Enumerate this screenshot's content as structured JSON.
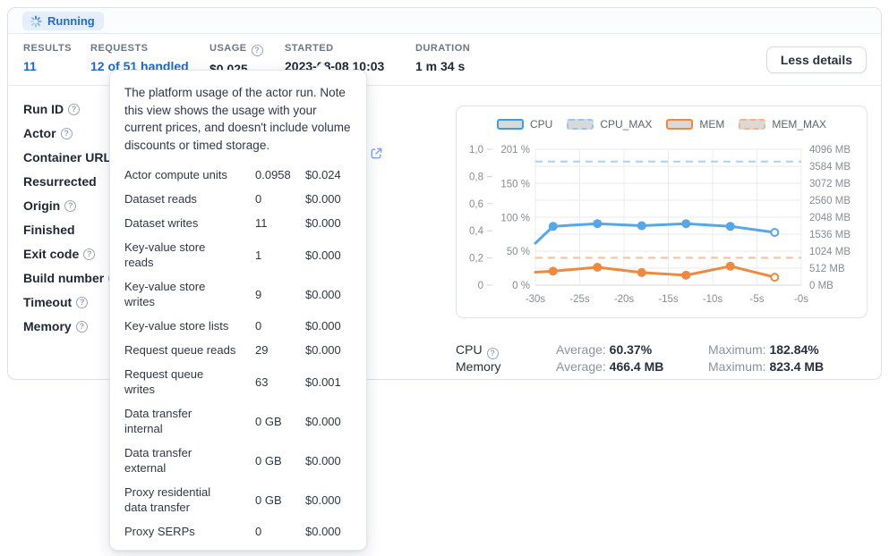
{
  "status": {
    "label": "Running"
  },
  "stats": {
    "results": {
      "label": "RESULTS",
      "value": "11"
    },
    "requests": {
      "label": "REQUESTS",
      "value": "12 of 51 handled"
    },
    "usage": {
      "label": "USAGE",
      "value": "$0.025"
    },
    "started": {
      "label": "STARTED",
      "value": "2023-08-08 10:03"
    },
    "duration": {
      "label": "DURATION",
      "value": "1 m 34 s"
    }
  },
  "actions": {
    "less_details": "Less details"
  },
  "details": {
    "fields": [
      {
        "label": "Run ID",
        "help": true,
        "external_link": false
      },
      {
        "label": "Actor",
        "help": true,
        "external_link": false
      },
      {
        "label": "Container URL",
        "help": true,
        "external_link": true
      },
      {
        "label": "Resurrected",
        "help": false,
        "external_link": false
      },
      {
        "label": "Origin",
        "help": true,
        "external_link": false
      },
      {
        "label": "Finished",
        "help": false,
        "external_link": false
      },
      {
        "label": "Exit code",
        "help": true,
        "external_link": false
      },
      {
        "label": "Build number",
        "help": true,
        "external_link": false
      },
      {
        "label": "Timeout",
        "help": true,
        "external_link": false
      },
      {
        "label": "Memory",
        "help": true,
        "external_link": false
      }
    ]
  },
  "tooltip": {
    "text": "The platform usage of the actor run. Note this view shows the usage with your current prices, and doesn't include volume discounts or timed storage.",
    "rows": [
      {
        "label": "Actor compute units",
        "value": "0.0958",
        "price": "$0.024"
      },
      {
        "label": "Dataset reads",
        "value": "0",
        "price": "$0.000"
      },
      {
        "label": "Dataset writes",
        "value": "11",
        "price": "$0.000"
      },
      {
        "label": "Key-value store\nreads",
        "value": "1",
        "price": "$0.000"
      },
      {
        "label": "Key-value store\nwrites",
        "value": "9",
        "price": "$0.000"
      },
      {
        "label": "Key-value store lists",
        "value": "0",
        "price": "$0.000"
      },
      {
        "label": "Request queue reads",
        "value": "29",
        "price": "$0.000"
      },
      {
        "label": "Request queue\nwrites",
        "value": "63",
        "price": "$0.001"
      },
      {
        "label": "Data transfer\ninternal",
        "value": "0 GB",
        "price": "$0.000"
      },
      {
        "label": "Data transfer\nexternal",
        "value": "0 GB",
        "price": "$0.000"
      },
      {
        "label": "Proxy residential\ndata transfer",
        "value": "0 GB",
        "price": "$0.000"
      },
      {
        "label": "Proxy SERPs",
        "value": "0",
        "price": "$0.000"
      }
    ]
  },
  "chart_data": {
    "type": "line",
    "x": [
      -30,
      -28,
      -23,
      -18,
      -13,
      -8,
      -3
    ],
    "x_unit": "seconds",
    "series": [
      {
        "name": "CPU",
        "axis": "percent",
        "style": "solid",
        "color": "#55a7e9",
        "values": [
          62,
          87,
          91,
          88,
          91,
          87,
          78
        ]
      },
      {
        "name": "CPU_MAX",
        "axis": "percent",
        "style": "dashed",
        "color": "#a6d2f2",
        "constant": 182.84
      },
      {
        "name": "MEM",
        "axis": "mb",
        "style": "solid",
        "color": "#ee8a40",
        "values": [
          390,
          420,
          540,
          380,
          300,
          570,
          240
        ]
      },
      {
        "name": "MEM_MAX",
        "axis": "mb",
        "style": "dashed",
        "color": "#f7c09a",
        "constant": 823.4
      }
    ],
    "axes": {
      "left_outer": {
        "range": [
          0,
          1
        ],
        "ticks": [
          "1,0",
          "0,8",
          "0,6",
          "0,4",
          "0,2",
          "0"
        ]
      },
      "left_percent": {
        "range": [
          0,
          201
        ],
        "ticks": [
          "201 %",
          "150 %",
          "100 %",
          "50 %",
          "0 %"
        ],
        "tick_values": [
          201,
          150,
          100,
          50,
          0
        ]
      },
      "right_mb": {
        "range": [
          0,
          4096
        ],
        "ticks": [
          "4096 MB",
          "3584 MB",
          "3072 MB",
          "2560 MB",
          "2048 MB",
          "1536 MB",
          "1024 MB",
          "512 MB",
          "0 MB"
        ]
      },
      "x_ticks": [
        "-30s",
        "-25s",
        "-20s",
        "-15s",
        "-10s",
        "-5s",
        "-0s"
      ]
    },
    "legend": [
      {
        "label": "CPU",
        "color": "#3f9de8",
        "style": "solid"
      },
      {
        "label": "CPU_MAX",
        "color": "#90c8f1",
        "style": "dashed"
      },
      {
        "label": "MEM",
        "color": "#ee8a40",
        "style": "solid"
      },
      {
        "label": "MEM_MAX",
        "color": "#f5b285",
        "style": "dashed"
      }
    ],
    "grid": true,
    "title": ""
  },
  "resource_stats": {
    "rows": [
      {
        "name": "CPU",
        "help": true,
        "average_label": "Average:",
        "average_value": "60.37%",
        "maximum_label": "Maximum:",
        "maximum_value": "182.84%"
      },
      {
        "name": "Memory",
        "help": false,
        "average_label": "Average:",
        "average_value": "466.4 MB",
        "maximum_label": "Maximum:",
        "maximum_value": "823.4 MB"
      }
    ]
  },
  "colors": {
    "accent_blue": "#1b66d9",
    "badge_bg": "#e4eefc",
    "cpu_line": "#55a7e9",
    "mem_line": "#ee8a40",
    "grid_line": "#e8e8e8",
    "tick_text": "#878c95"
  }
}
